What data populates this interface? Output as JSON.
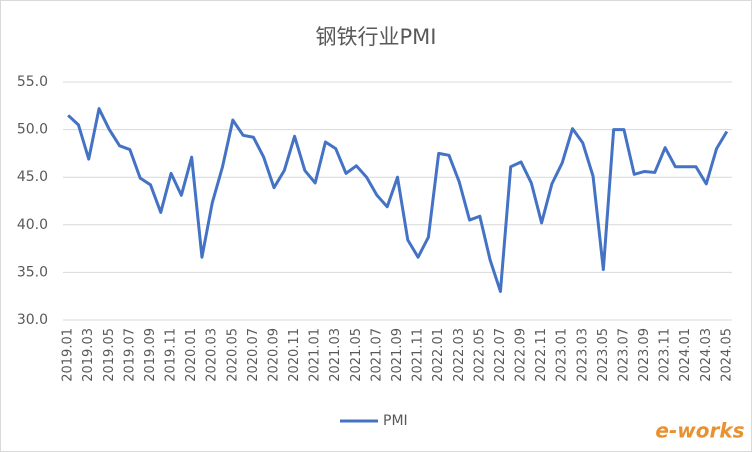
{
  "chart_data": {
    "type": "line",
    "title": "钢铁行业PMI",
    "categories": [
      "2019.01",
      null,
      "2019.03",
      null,
      "2019.05",
      null,
      "2019.07",
      null,
      "2019.09",
      null,
      "2019.11",
      null,
      "2020.01",
      null,
      "2020.03",
      null,
      "2020.05",
      null,
      "2020.07",
      null,
      "2020.09",
      null,
      "2020.11",
      null,
      "2021.01",
      null,
      "2021.03",
      null,
      "2021.05",
      null,
      "2021.07",
      null,
      "2021.09",
      null,
      "2021.11",
      null,
      "2022.01",
      null,
      "2022.03",
      null,
      "2022.05",
      null,
      "2022.07",
      null,
      "2022.09",
      null,
      "2022.11",
      null,
      "2023.01",
      null,
      "2023.03",
      null,
      "2023.05",
      null,
      "2023.07",
      null,
      "2023.09",
      null,
      "2023.11",
      null,
      "2024.01",
      null,
      "2024.03",
      null,
      "2024.05"
    ],
    "series": [
      {
        "name": "PMI",
        "color": "#4472c4",
        "values": [
          51.5,
          50.5,
          46.9,
          52.2,
          50.0,
          48.3,
          47.9,
          44.9,
          44.2,
          41.3,
          45.4,
          43.1,
          47.1,
          36.6,
          42.3,
          46.1,
          51.0,
          49.4,
          49.2,
          47.1,
          43.9,
          45.7,
          49.3,
          45.7,
          44.4,
          48.7,
          48.0,
          45.4,
          46.2,
          45.0,
          43.1,
          41.9,
          45.0,
          38.4,
          36.6,
          38.7,
          47.5,
          47.3,
          44.5,
          40.5,
          40.9,
          36.3,
          33.0,
          46.1,
          46.6,
          44.4,
          40.2,
          44.3,
          46.5,
          50.1,
          48.6,
          45.1,
          35.3,
          50.0,
          50.0,
          45.3,
          45.6,
          45.5,
          48.1,
          46.1,
          46.1,
          46.1,
          44.3,
          48.0,
          49.8
        ]
      }
    ],
    "ylim": [
      30,
      55
    ],
    "yticks": [
      {
        "value": 30,
        "label": "30.0"
      },
      {
        "value": 35,
        "label": "35.0"
      },
      {
        "value": 40,
        "label": "40.0"
      },
      {
        "value": 45,
        "label": "45.0"
      },
      {
        "value": 50,
        "label": "50.0"
      },
      {
        "value": 55,
        "label": "55.0"
      }
    ],
    "grid": true,
    "legend": "bottom",
    "watermark": "e-works"
  }
}
